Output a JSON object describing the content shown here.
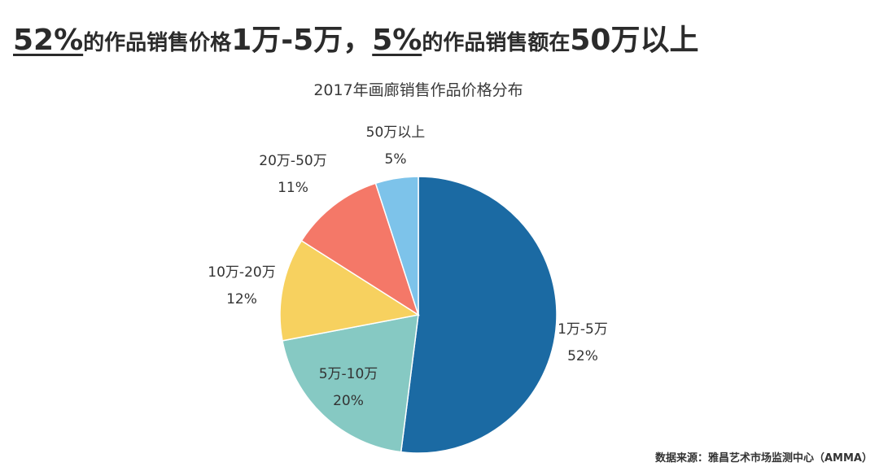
{
  "headline": {
    "part1": "52%",
    "part2": "的作品销售价格",
    "part3": "1万-5万，",
    "part4": "5%",
    "part5": "的作品销售额在",
    "part6": "50万以上"
  },
  "chart_data": {
    "type": "pie",
    "title": "2017年画廊销售作品价格分布",
    "slices": [
      {
        "label": "1万-5万",
        "pct_label": "52%",
        "value": 52,
        "color": "#1b6aa3"
      },
      {
        "label": "5万-10万",
        "pct_label": "20%",
        "value": 20,
        "color": "#86c9c3"
      },
      {
        "label": "10万-20万",
        "pct_label": "12%",
        "value": 12,
        "color": "#f7d15f"
      },
      {
        "label": "20万-50万",
        "pct_label": "11%",
        "value": 11,
        "color": "#f47868"
      },
      {
        "label": "50万以上",
        "pct_label": "5%",
        "value": 5,
        "color": "#7dc3ea"
      }
    ]
  },
  "source": "数据来源：雅昌艺术市场监测中心（AMMA）"
}
